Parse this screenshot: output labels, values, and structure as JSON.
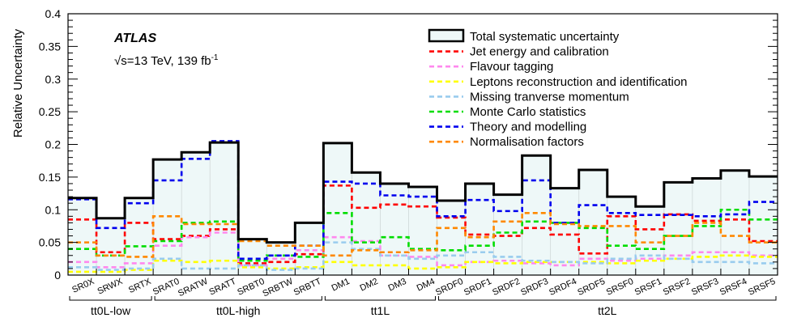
{
  "chart_data": {
    "type": "line",
    "step": true,
    "ylabel": "Relative Uncertainty",
    "ylim": [
      0,
      0.4
    ],
    "yticks": [
      "0",
      "0.05",
      "0.1",
      "0.15",
      "0.2",
      "0.25",
      "0.3",
      "0.35",
      "0.4"
    ],
    "ytick_values": [
      0,
      0.05,
      0.1,
      0.15,
      0.2,
      0.25,
      0.3,
      0.35,
      0.4
    ],
    "categories": [
      "SR0X",
      "SRWX",
      "SRTX",
      "SRAT0",
      "SRATW",
      "SRATT",
      "SRBT0",
      "SRBTW",
      "SRBTT",
      "DM1",
      "DM2",
      "DM3",
      "DM4",
      "SRDF0",
      "SRDF1",
      "SRDF2",
      "SRDF3",
      "SRDF4",
      "SRDF5",
      "SRSF0",
      "SRSF1",
      "SRSF2",
      "SRSF3",
      "SRSF4",
      "SRSF5"
    ],
    "groups": [
      {
        "label": "tt0L-low",
        "start": 0,
        "end": 2
      },
      {
        "label": "tt0L-high",
        "start": 3,
        "end": 8
      },
      {
        "label": "tt1L",
        "start": 9,
        "end": 12
      },
      {
        "label": "tt2L",
        "start": 13,
        "end": 24
      }
    ],
    "annotations": {
      "experiment": "ATLAS",
      "energy": "√s=13 TeV, 139 fb",
      "energy_sup": "-1"
    },
    "legend_position": "top-right",
    "series": [
      {
        "name": "Total systematic uncertainty",
        "color": "#000000",
        "fill": "#eef8f8",
        "dashed": false,
        "values": [
          0.118,
          0.087,
          0.118,
          0.177,
          0.188,
          0.203,
          0.055,
          0.05,
          0.08,
          0.202,
          0.157,
          0.14,
          0.135,
          0.114,
          0.14,
          0.123,
          0.183,
          0.133,
          0.161,
          0.12,
          0.105,
          0.142,
          0.148,
          0.16,
          0.151
        ]
      },
      {
        "name": "Jet energy and calibration",
        "color": "#ff0000",
        "dashed": true,
        "values": [
          0.085,
          0.035,
          0.08,
          0.055,
          0.06,
          0.07,
          0.018,
          0.02,
          0.032,
          0.137,
          0.103,
          0.108,
          0.105,
          0.088,
          0.062,
          0.06,
          0.072,
          0.062,
          0.033,
          0.09,
          0.07,
          0.093,
          0.083,
          0.085,
          0.052
        ]
      },
      {
        "name": "Flavour tagging",
        "color": "#ff88ee",
        "dashed": true,
        "values": [
          0.02,
          0.012,
          0.018,
          0.045,
          0.058,
          0.065,
          0.015,
          0.025,
          0.038,
          0.058,
          0.052,
          0.03,
          0.028,
          0.015,
          0.02,
          0.022,
          0.018,
          0.015,
          0.025,
          0.022,
          0.025,
          0.03,
          0.035,
          0.035,
          0.03
        ]
      },
      {
        "name": "Leptons reconstruction and identification",
        "color": "#ffff00",
        "dashed": true,
        "values": [
          0.005,
          0.005,
          0.008,
          0.022,
          0.02,
          0.022,
          0.012,
          0.01,
          0.012,
          0.02,
          0.015,
          0.015,
          0.01,
          0.012,
          0.02,
          0.018,
          0.02,
          0.02,
          0.02,
          0.018,
          0.022,
          0.025,
          0.028,
          0.03,
          0.028
        ]
      },
      {
        "name": "Missing tranverse momentum",
        "color": "#99ccee",
        "dashed": true,
        "values": [
          0.012,
          0.008,
          0.01,
          0.025,
          0.01,
          0.01,
          0.015,
          0.008,
          0.01,
          0.05,
          0.04,
          0.03,
          0.025,
          0.03,
          0.035,
          0.028,
          0.022,
          0.02,
          0.018,
          0.025,
          0.03,
          0.025,
          0.02,
          0.02,
          0.018
        ]
      },
      {
        "name": "Monte Carlo statistics",
        "color": "#00dd00",
        "dashed": true,
        "values": [
          0.04,
          0.03,
          0.044,
          0.052,
          0.08,
          0.082,
          0.022,
          0.03,
          0.028,
          0.095,
          0.05,
          0.058,
          0.04,
          0.038,
          0.045,
          0.065,
          0.082,
          0.08,
          0.072,
          0.045,
          0.04,
          0.06,
          0.075,
          0.1,
          0.085
        ]
      },
      {
        "name": "Theory and modelling",
        "color": "#0000ee",
        "dashed": true,
        "values": [
          0.116,
          0.072,
          0.11,
          0.145,
          0.178,
          0.205,
          0.025,
          0.03,
          0.045,
          0.143,
          0.14,
          0.122,
          0.12,
          0.09,
          0.115,
          0.098,
          0.145,
          0.08,
          0.107,
          0.095,
          0.092,
          0.092,
          0.09,
          0.093,
          0.112
        ]
      },
      {
        "name": "Normalisation factors",
        "color": "#ff8800",
        "dashed": true,
        "values": [
          0.05,
          0.03,
          0.028,
          0.09,
          0.078,
          0.078,
          0.052,
          0.045,
          0.045,
          0.03,
          0.038,
          0.035,
          0.038,
          0.072,
          0.058,
          0.082,
          0.095,
          0.078,
          0.075,
          0.075,
          0.05,
          0.06,
          0.08,
          0.06,
          0.05
        ]
      }
    ]
  }
}
